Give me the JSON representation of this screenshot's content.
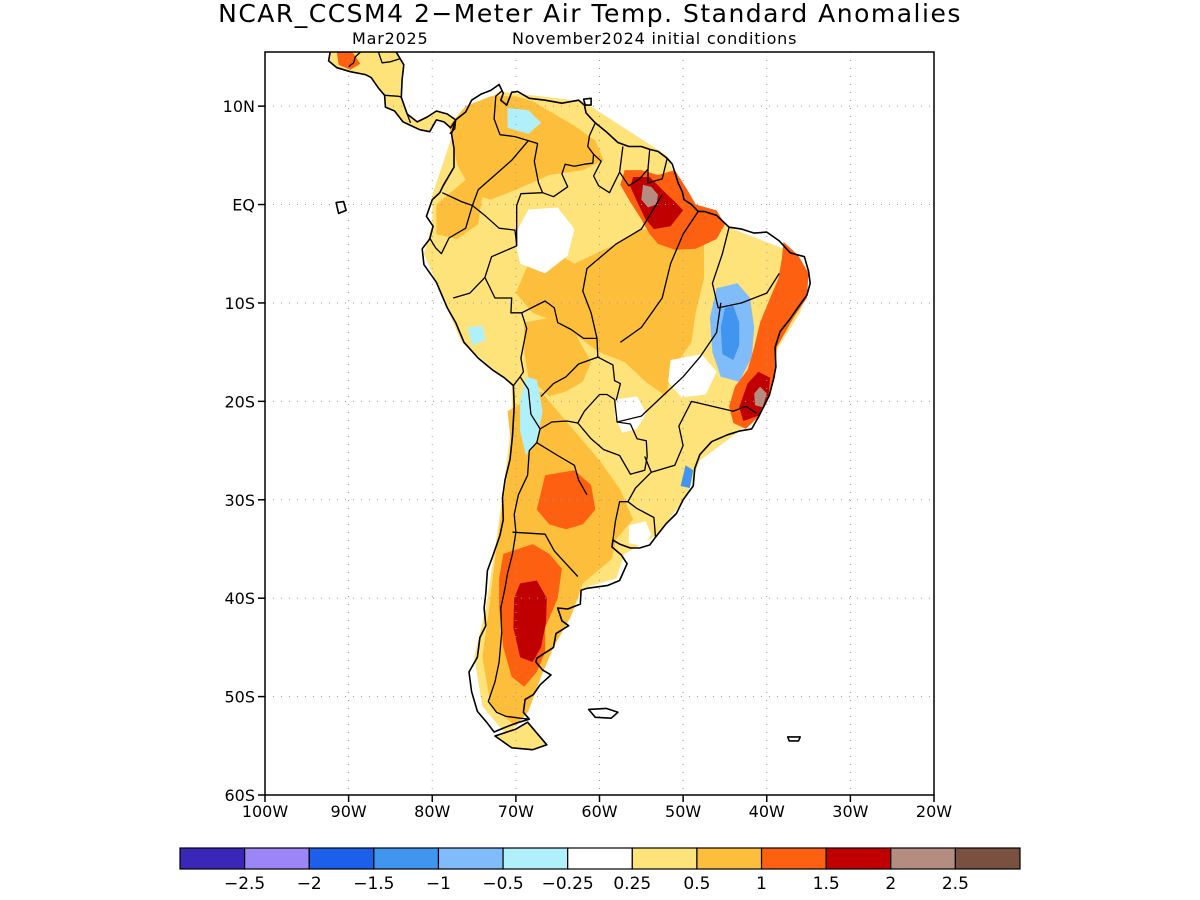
{
  "title": "NCAR_CCSM4 2−Meter Air Temp. Standard Anomalies",
  "subtitle_month": "Mar2025",
  "subtitle_init": "November2024 initial conditions",
  "map": {
    "lat_range": [
      -60,
      15.5
    ],
    "lon_range": [
      -100,
      -20
    ],
    "lat_ticks": [
      {
        "lat": 10,
        "label": "10N"
      },
      {
        "lat": 0,
        "label": "EQ"
      },
      {
        "lat": -10,
        "label": "10S"
      },
      {
        "lat": -20,
        "label": "20S"
      },
      {
        "lat": -30,
        "label": "30S"
      },
      {
        "lat": -40,
        "label": "40S"
      },
      {
        "lat": -50,
        "label": "50S"
      },
      {
        "lat": -60,
        "label": "60S"
      }
    ],
    "lon_ticks": [
      {
        "lon": -100,
        "label": "100W"
      },
      {
        "lon": -90,
        "label": "90W"
      },
      {
        "lon": -80,
        "label": "80W"
      },
      {
        "lon": -70,
        "label": "70W"
      },
      {
        "lon": -60,
        "label": "60W"
      },
      {
        "lon": -50,
        "label": "50W"
      },
      {
        "lon": -40,
        "label": "40W"
      },
      {
        "lon": -30,
        "label": "30W"
      },
      {
        "lon": -20,
        "label": "20W"
      }
    ],
    "gridlines": "dotted",
    "anomaly_regions": [
      {
        "name": "continental-base",
        "level": 0.5,
        "color": "#fee27a"
      },
      {
        "name": "amazon-central",
        "level": 1,
        "color": "#fdbf3b"
      },
      {
        "name": "northern-colombia-venezuela",
        "level": 1,
        "color": "#fdbf3b"
      },
      {
        "name": "western-colombia",
        "level": 1,
        "color": "#fdbf3b"
      },
      {
        "name": "southern-cone",
        "level": 1,
        "color": "#fdbf3b"
      },
      {
        "name": "bolivia",
        "level": 1,
        "color": "#fdbf3b"
      },
      {
        "name": "para-amapa",
        "level": 1.5,
        "color": "#fd6010"
      },
      {
        "name": "para-amapa-core",
        "level": 2,
        "color": "#c00000"
      },
      {
        "name": "para-amapa-peak",
        "level": 2.5,
        "color": "#b48c80"
      },
      {
        "name": "northeast-brazil-coast",
        "level": 1.5,
        "color": "#fd6010"
      },
      {
        "name": "southeast-brazil-core",
        "level": 2,
        "color": "#c00000"
      },
      {
        "name": "southeast-brazil-peak",
        "level": 2.5,
        "color": "#b48c80"
      },
      {
        "name": "central-argentina",
        "level": 1.5,
        "color": "#fd6010"
      },
      {
        "name": "patagonia",
        "level": 1.5,
        "color": "#fd6010"
      },
      {
        "name": "patagonia-core",
        "level": 2,
        "color": "#c00000"
      },
      {
        "name": "bahia-cool",
        "level": -0.5,
        "color": "#7fbcf9"
      },
      {
        "name": "bahia-cool-core",
        "level": -1,
        "color": "#4096ee"
      },
      {
        "name": "venezuela-cool",
        "level": -0.25,
        "color": "#aff0fb"
      },
      {
        "name": "andes-cool",
        "level": -0.25,
        "color": "#aff0fb"
      },
      {
        "name": "peru-cool",
        "level": -0.25,
        "color": "#aff0fb"
      },
      {
        "name": "south-brazil-cool",
        "level": -1,
        "color": "#4096ee"
      },
      {
        "name": "central-america-warm",
        "level": 1.5,
        "color": "#fd6010"
      }
    ],
    "near_normal_areas": [
      "northwest-amazon",
      "goias",
      "paraguay",
      "uruguay-coast"
    ]
  },
  "colorbar": {
    "colors": [
      "#3b27b7",
      "#9b85f7",
      "#1c5fea",
      "#4096ee",
      "#7fbcf9",
      "#aff0fb",
      "#ffffff",
      "#fee27a",
      "#fdbf3b",
      "#fd6010",
      "#c00000",
      "#b48c80",
      "#7a5040"
    ],
    "labels": [
      "−2.5",
      "−2",
      "−1.5",
      "−1",
      "−0.5",
      "−0.25",
      "0.25",
      "0.5",
      "1",
      "1.5",
      "2",
      "2.5"
    ]
  }
}
